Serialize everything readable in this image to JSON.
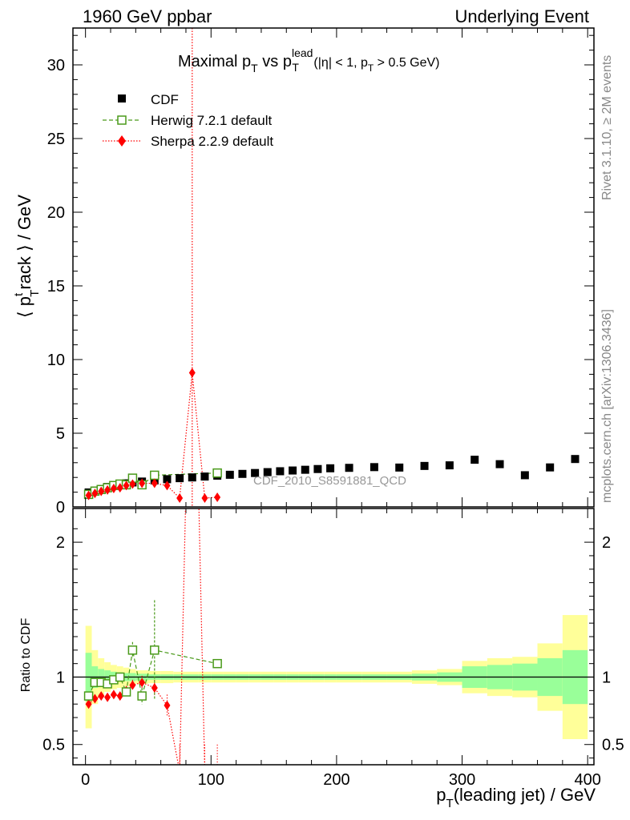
{
  "header": {
    "left": "1960 GeV ppbar",
    "right": "Underlying Event"
  },
  "side": {
    "rivet": "Rivet 3.1.10, ≥ 2M events",
    "mcplots": "mcplots.cern.ch [arXiv:1306.3436]"
  },
  "plot_title": {
    "main": "Maximal p",
    "main_sub": "T",
    "vs": " vs p",
    "vs_sup": "lead",
    "vs_sub": "T",
    "cut_a": " (|η| < 1, p",
    "cut_sub": "T",
    "cut_b": " > 0.5 GeV)"
  },
  "watermark": "CDF_2010_S8591881_QCD",
  "ylabel_main": {
    "a": "⟨ p",
    "sup": "t",
    "sub": "T",
    "b": "rack ⟩ / GeV"
  },
  "ylabel_ratio": "Ratio to CDF",
  "xlabel": {
    "a": "p",
    "sub": "T",
    "b": "(leading jet) / GeV"
  },
  "chart_data": {
    "type": "scatter",
    "x_range": [
      -10,
      405
    ],
    "main_y_range": [
      0,
      32.5
    ],
    "ratio_y_range": [
      0.35,
      2.25
    ],
    "x_ticks": [
      0,
      100,
      200,
      300,
      400
    ],
    "main_y_ticks": [
      0,
      5,
      10,
      15,
      20,
      25,
      30
    ],
    "ratio_y_ticks": [
      0.5,
      1,
      2
    ],
    "legend_position": "top-left",
    "series": [
      {
        "name": "CDF",
        "color": "#000000",
        "marker": "filled-square",
        "x": [
          2.5,
          7.5,
          12.5,
          17.5,
          22.5,
          27.5,
          32.5,
          37.5,
          45,
          55,
          65,
          75,
          85,
          95,
          105,
          115,
          125,
          135,
          145,
          155,
          165,
          175,
          185,
          195,
          210,
          230,
          250,
          270,
          290,
          310,
          330,
          350,
          370,
          390
        ],
        "y": [
          0.98,
          1.1,
          1.2,
          1.35,
          1.45,
          1.52,
          1.6,
          1.66,
          1.72,
          1.8,
          1.88,
          1.95,
          2.0,
          2.06,
          2.12,
          2.18,
          2.24,
          2.3,
          2.36,
          2.42,
          2.47,
          2.52,
          2.57,
          2.62,
          2.65,
          2.7,
          2.67,
          2.78,
          2.82,
          3.2,
          2.9,
          2.15,
          2.68,
          3.25
        ]
      },
      {
        "name": "Herwig 7.2.1 default",
        "color": "#4a9a1a",
        "marker": "open-square",
        "line": "dashed",
        "x": [
          2.5,
          7.5,
          12.5,
          17.5,
          22.5,
          27.5,
          32.5,
          37.5,
          45,
          55,
          105
        ],
        "y": [
          0.85,
          1.07,
          1.18,
          1.3,
          1.45,
          1.55,
          1.5,
          1.95,
          1.5,
          2.15,
          2.3
        ],
        "ratio": [
          0.86,
          0.96,
          0.96,
          0.95,
          0.98,
          1.0,
          0.89,
          1.2,
          0.86,
          1.2,
          1.1
        ],
        "ratio_err": [
          0.03,
          0.02,
          0.02,
          0.02,
          0.02,
          0.02,
          0.03,
          0.06,
          0.06,
          0.37,
          0.02
        ]
      },
      {
        "name": "Sherpa 2.2.9 default",
        "color": "#ff0000",
        "marker": "filled-diamond",
        "line": "dotted",
        "x": [
          2.5,
          7.5,
          12.5,
          17.5,
          22.5,
          27.5,
          32.5,
          37.5,
          45,
          55,
          65,
          75,
          85,
          95,
          105
        ],
        "y": [
          0.78,
          0.92,
          1.05,
          1.15,
          1.25,
          1.3,
          1.45,
          1.55,
          1.6,
          1.6,
          1.45,
          0.6,
          9.1,
          0.6,
          0.65
        ],
        "ratio": [
          0.8,
          0.84,
          0.86,
          0.85,
          0.87,
          0.86,
          0.9,
          0.94,
          0.96,
          0.92,
          0.79,
          0.3,
          4.5,
          0.3,
          0.3
        ],
        "ratio_err": [
          0.02,
          0.02,
          0.02,
          0.02,
          0.02,
          0.02,
          0.03,
          0.04,
          0.05,
          0.06,
          0.08,
          0.2,
          2.0,
          0.2,
          0.2
        ]
      }
    ],
    "ratio_bands": {
      "x_edges": [
        0,
        5,
        10,
        15,
        20,
        25,
        30,
        35,
        40,
        50,
        60,
        70,
        80,
        90,
        100,
        110,
        120,
        130,
        140,
        150,
        160,
        170,
        180,
        190,
        200,
        220,
        240,
        260,
        280,
        300,
        320,
        340,
        360,
        380,
        400
      ],
      "inner": [
        0.18,
        0.08,
        0.06,
        0.05,
        0.04,
        0.035,
        0.03,
        0.03,
        0.025,
        0.02,
        0.02,
        0.02,
        0.02,
        0.02,
        0.02,
        0.02,
        0.02,
        0.02,
        0.02,
        0.02,
        0.02,
        0.02,
        0.02,
        0.02,
        0.02,
        0.02,
        0.02,
        0.025,
        0.035,
        0.08,
        0.09,
        0.1,
        0.14,
        0.2
      ],
      "outer": [
        0.38,
        0.2,
        0.14,
        0.11,
        0.09,
        0.08,
        0.07,
        0.06,
        0.05,
        0.045,
        0.045,
        0.04,
        0.04,
        0.04,
        0.04,
        0.04,
        0.04,
        0.04,
        0.04,
        0.04,
        0.04,
        0.04,
        0.04,
        0.04,
        0.04,
        0.04,
        0.04,
        0.05,
        0.06,
        0.12,
        0.14,
        0.15,
        0.25,
        0.46
      ],
      "inner_color": "#99ff99",
      "outer_color": "#ffff99"
    }
  }
}
